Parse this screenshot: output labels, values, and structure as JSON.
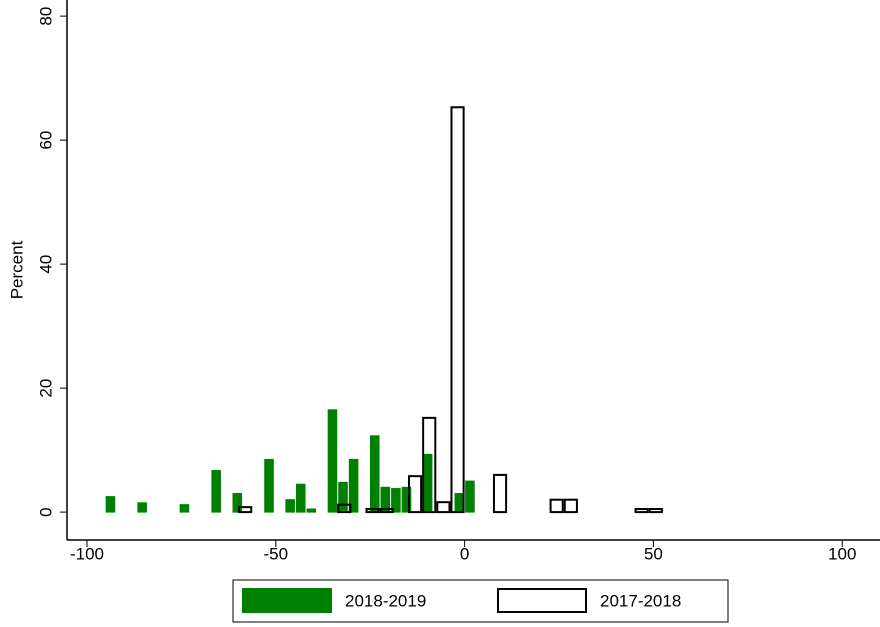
{
  "chart_data": {
    "type": "histogram",
    "y_label": "Percent",
    "xlim": [
      -105.3,
      110
    ],
    "xticks": [
      -100,
      -50,
      0,
      50,
      100
    ],
    "ylim": [
      -4.5,
      82.6
    ],
    "yticks": [
      0,
      20,
      40,
      60,
      80
    ],
    "grid": false,
    "legend_position": "bottom",
    "series": [
      {
        "name": "2018-2019",
        "color": "#008000",
        "hollow": false,
        "bins": [
          -95.2,
          -92.4,
          -89.6,
          -86.8,
          -84,
          -81.2,
          -78.4,
          -75.6,
          -72.8,
          -70,
          -67.2,
          -64.4,
          -61.6,
          -58.8,
          -56,
          -53.2,
          -50.4,
          -47.6,
          -44.8,
          -42,
          -39.2,
          -36.4,
          -33.6,
          -30.8,
          -28,
          -25.2,
          -22.4,
          -19.6,
          -16.8,
          -14,
          -11.2,
          -8.4,
          -5.6,
          -2.8,
          0,
          2.8,
          5.6,
          8.4,
          11.2
        ],
        "values": [
          2.5,
          0,
          0,
          1.5,
          0,
          0,
          0,
          1.2,
          0,
          0,
          6.7,
          0,
          3,
          0,
          0,
          8.5,
          0,
          2,
          4.5,
          0.5,
          0,
          16.5,
          4.8,
          8.5,
          0,
          12.3,
          4,
          3.8,
          4,
          0,
          9.3,
          0,
          0,
          3,
          5,
          0,
          0,
          0
        ]
      },
      {
        "name": "2017-2018",
        "color": "#000000",
        "hollow": true,
        "bins": [
          -60,
          -56.25,
          -52.5,
          -48.75,
          -45,
          -41.25,
          -37.5,
          -33.75,
          -30,
          -26.25,
          -22.5,
          -18.75,
          -15,
          -11.25,
          -7.5,
          -3.75,
          0,
          3.75,
          7.5,
          11.25,
          15,
          18.75,
          22.5,
          26.25,
          30,
          33.75,
          37.5,
          41.25,
          45,
          48.75,
          52.5,
          56.25,
          60,
          63.75,
          67.5,
          71.25,
          75,
          78.75,
          82.5,
          86.25,
          90,
          93.75,
          97.5,
          101.25,
          105,
          108.75
        ],
        "values": [
          0.8,
          0,
          0,
          0,
          0,
          0,
          0,
          1.2,
          0,
          0.5,
          0.5,
          0,
          5.8,
          15.2,
          1.6,
          65.3,
          0,
          0,
          6,
          0,
          0,
          0,
          2,
          2,
          0,
          0,
          0,
          0,
          0.5,
          0.5,
          0,
          0,
          0,
          0,
          0,
          0,
          0,
          0,
          0,
          0,
          0,
          0,
          0,
          0,
          0
        ]
      }
    ]
  }
}
